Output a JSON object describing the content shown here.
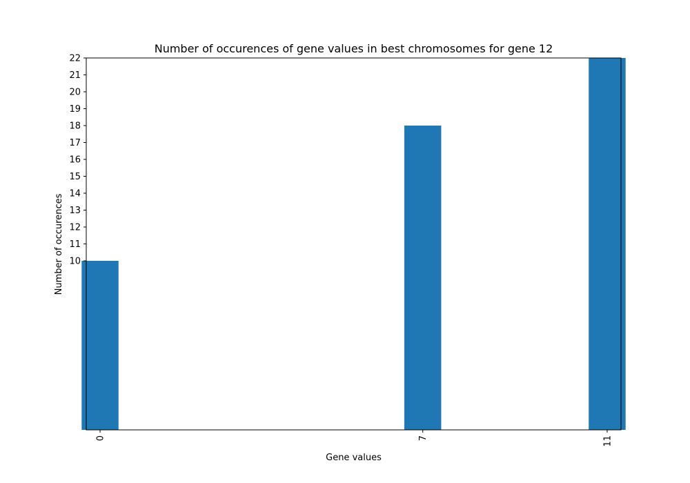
{
  "chart_data": {
    "type": "bar",
    "title": "Number of occurences of gene values in best chromosomes for gene 12",
    "xlabel": "Gene values",
    "ylabel": "Number of occurences",
    "x": [
      0,
      7,
      11
    ],
    "categories": [
      "0",
      "7",
      "11"
    ],
    "values": [
      10,
      18,
      22
    ],
    "xlim": [
      -0.3,
      11.3
    ],
    "ylim": [
      0,
      22.0
    ],
    "yticks": [
      10,
      11,
      12,
      13,
      14,
      15,
      16,
      17,
      18,
      19,
      20,
      21,
      22
    ],
    "bar_width": 0.8,
    "bar_color": "#1f77b4",
    "grid": false,
    "legend": "none",
    "xtick_rotation": "vertical"
  }
}
